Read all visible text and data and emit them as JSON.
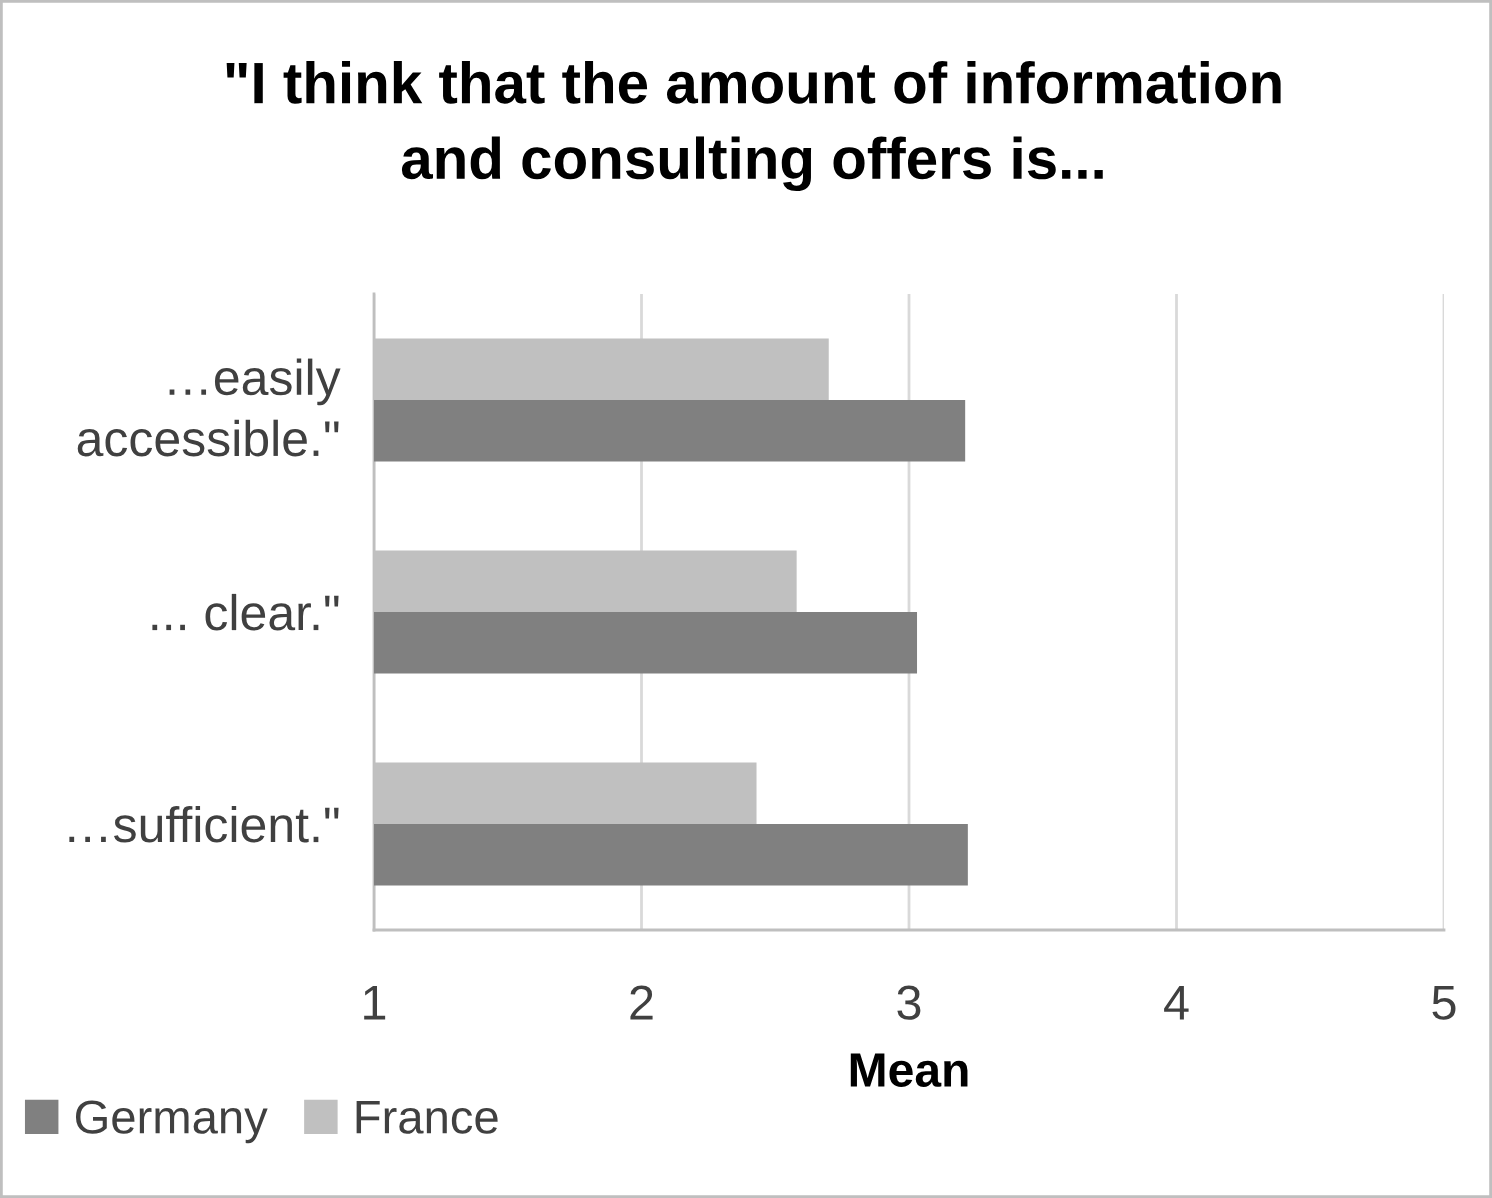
{
  "chart_data": {
    "type": "bar",
    "orientation": "horizontal",
    "title": "\"I think that the amount of information\nand consulting offers is...",
    "xlabel": "Mean",
    "categories": [
      "…easily\naccessible.\"",
      "... clear.\"",
      "…sufficient.\""
    ],
    "series": [
      {
        "name": "Germany",
        "color": "#808080",
        "values": [
          3.21,
          3.03,
          3.22
        ]
      },
      {
        "name": "France",
        "color": "#c0c0c0",
        "values": [
          2.7,
          2.58,
          2.43
        ]
      }
    ],
    "xlim": [
      1,
      5
    ],
    "xticks": [
      1,
      2,
      3,
      4,
      5
    ],
    "grid": "x",
    "legend": "bottom left"
  }
}
